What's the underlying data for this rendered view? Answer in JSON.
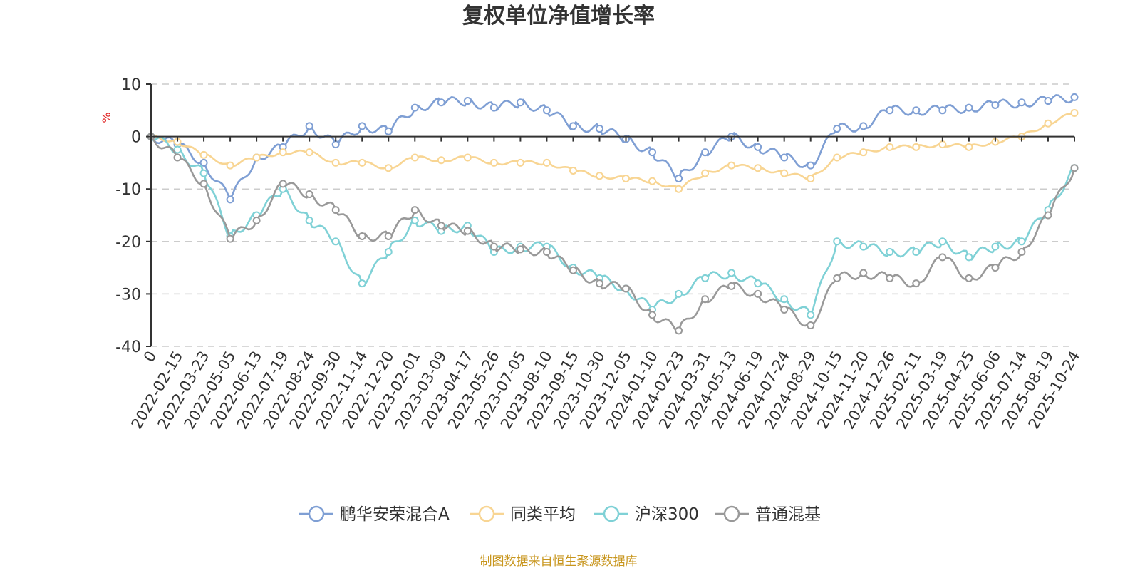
{
  "chart_data": {
    "type": "line",
    "title": "复权单位净值增长率",
    "ylabel": "%",
    "ylim": [
      -40,
      10
    ],
    "yticks": [
      10,
      0,
      -10,
      -20,
      -30,
      -40
    ],
    "grid": true,
    "legend_position": "bottom-center",
    "source_note": "制图数据来自恒生聚源数据库",
    "categories": [
      "0",
      "2022-02-15",
      "2022-03-23",
      "2022-05-05",
      "2022-06-13",
      "2022-07-19",
      "2022-08-24",
      "2022-09-30",
      "2022-11-14",
      "2022-12-20",
      "2023-02-01",
      "2023-03-09",
      "2023-04-17",
      "2023-05-26",
      "2023-07-05",
      "2023-08-10",
      "2023-09-15",
      "2023-10-30",
      "2023-12-05",
      "2024-01-10",
      "2024-02-23",
      "2024-03-31",
      "2024-05-13",
      "2024-06-19",
      "2024-07-24",
      "2024-08-29",
      "2024-10-15",
      "2024-11-20",
      "2024-12-26",
      "2025-02-11",
      "2025-03-19",
      "2025-04-25",
      "2025-06-06",
      "2025-07-14",
      "2025-08-19",
      "2025-10-24"
    ],
    "series": [
      {
        "name": "鹏华安荣混合A",
        "color": "#7f9fd4",
        "values": [
          0,
          -1.5,
          -5,
          -12,
          -4,
          -2,
          2,
          -1.5,
          2,
          1,
          5.5,
          6.5,
          6.8,
          5.5,
          6.5,
          5,
          2,
          1.5,
          -0.5,
          -3,
          -8,
          -3,
          0,
          -2,
          -4,
          -5.5,
          1.5,
          2,
          5,
          5,
          5,
          5.5,
          6,
          6.5,
          6.8,
          7.5
        ]
      },
      {
        "name": "同类平均",
        "color": "#f8d593",
        "values": [
          0,
          -1,
          -3.5,
          -5.5,
          -4,
          -3,
          -3,
          -5,
          -5,
          -6,
          -4,
          -4.5,
          -4,
          -5,
          -5,
          -5,
          -6.5,
          -7.5,
          -8,
          -8.5,
          -10,
          -7,
          -5.5,
          -6,
          -7,
          -8,
          -4,
          -3,
          -2,
          -2,
          -1.5,
          -2,
          -1,
          0,
          2.5,
          4.5
        ]
      },
      {
        "name": "沪深300",
        "color": "#7fd1d6",
        "values": [
          0,
          -2.5,
          -7,
          -19,
          -15,
          -10,
          -16,
          -20,
          -28,
          -22,
          -16,
          -18,
          -17,
          -22,
          -21,
          -21,
          -25,
          -27,
          -29,
          -33,
          -30,
          -27,
          -26,
          -28,
          -31,
          -34,
          -20,
          -21,
          -22,
          -22,
          -20,
          -23,
          -21,
          -20,
          -14,
          -6
        ]
      },
      {
        "name": "普通混基",
        "color": "#999999",
        "values": [
          0,
          -4,
          -9,
          -19.5,
          -16,
          -9,
          -11,
          -14,
          -19,
          -19,
          -14,
          -17,
          -18,
          -21,
          -21.5,
          -22,
          -25.5,
          -28,
          -29,
          -34,
          -37,
          -31,
          -28.5,
          -30,
          -33,
          -36,
          -27,
          -26,
          -27,
          -28,
          -23,
          -27,
          -25,
          -22,
          -15,
          -6
        ]
      }
    ]
  }
}
